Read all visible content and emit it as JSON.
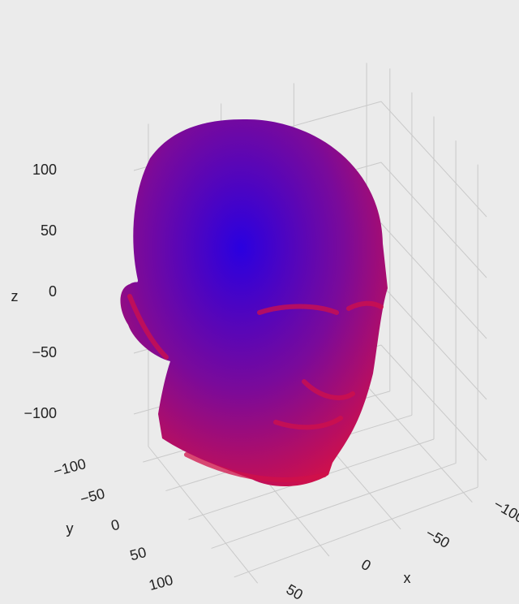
{
  "chart_data": {
    "type": "mesh3d",
    "xaxis_title": "x",
    "yaxis_title": "y",
    "zaxis_title": "z",
    "xlim": [
      -110,
      60
    ],
    "ylim": [
      -120,
      120
    ],
    "zlim": [
      -130,
      135
    ],
    "xticks": [
      {
        "value": -100,
        "label": "−100"
      },
      {
        "value": -50,
        "label": "−50"
      },
      0,
      50
    ],
    "yticks": [
      {
        "value": -100,
        "label": "−100"
      },
      {
        "value": -50,
        "label": "−50"
      },
      0,
      50,
      100
    ],
    "zticks": [
      {
        "value": -100,
        "label": "−100"
      },
      {
        "value": -50,
        "label": "−50"
      },
      0,
      50,
      100
    ],
    "grid": true,
    "colors": [
      "#2a00e0",
      "#7a0a9a",
      "#d0104a"
    ]
  }
}
